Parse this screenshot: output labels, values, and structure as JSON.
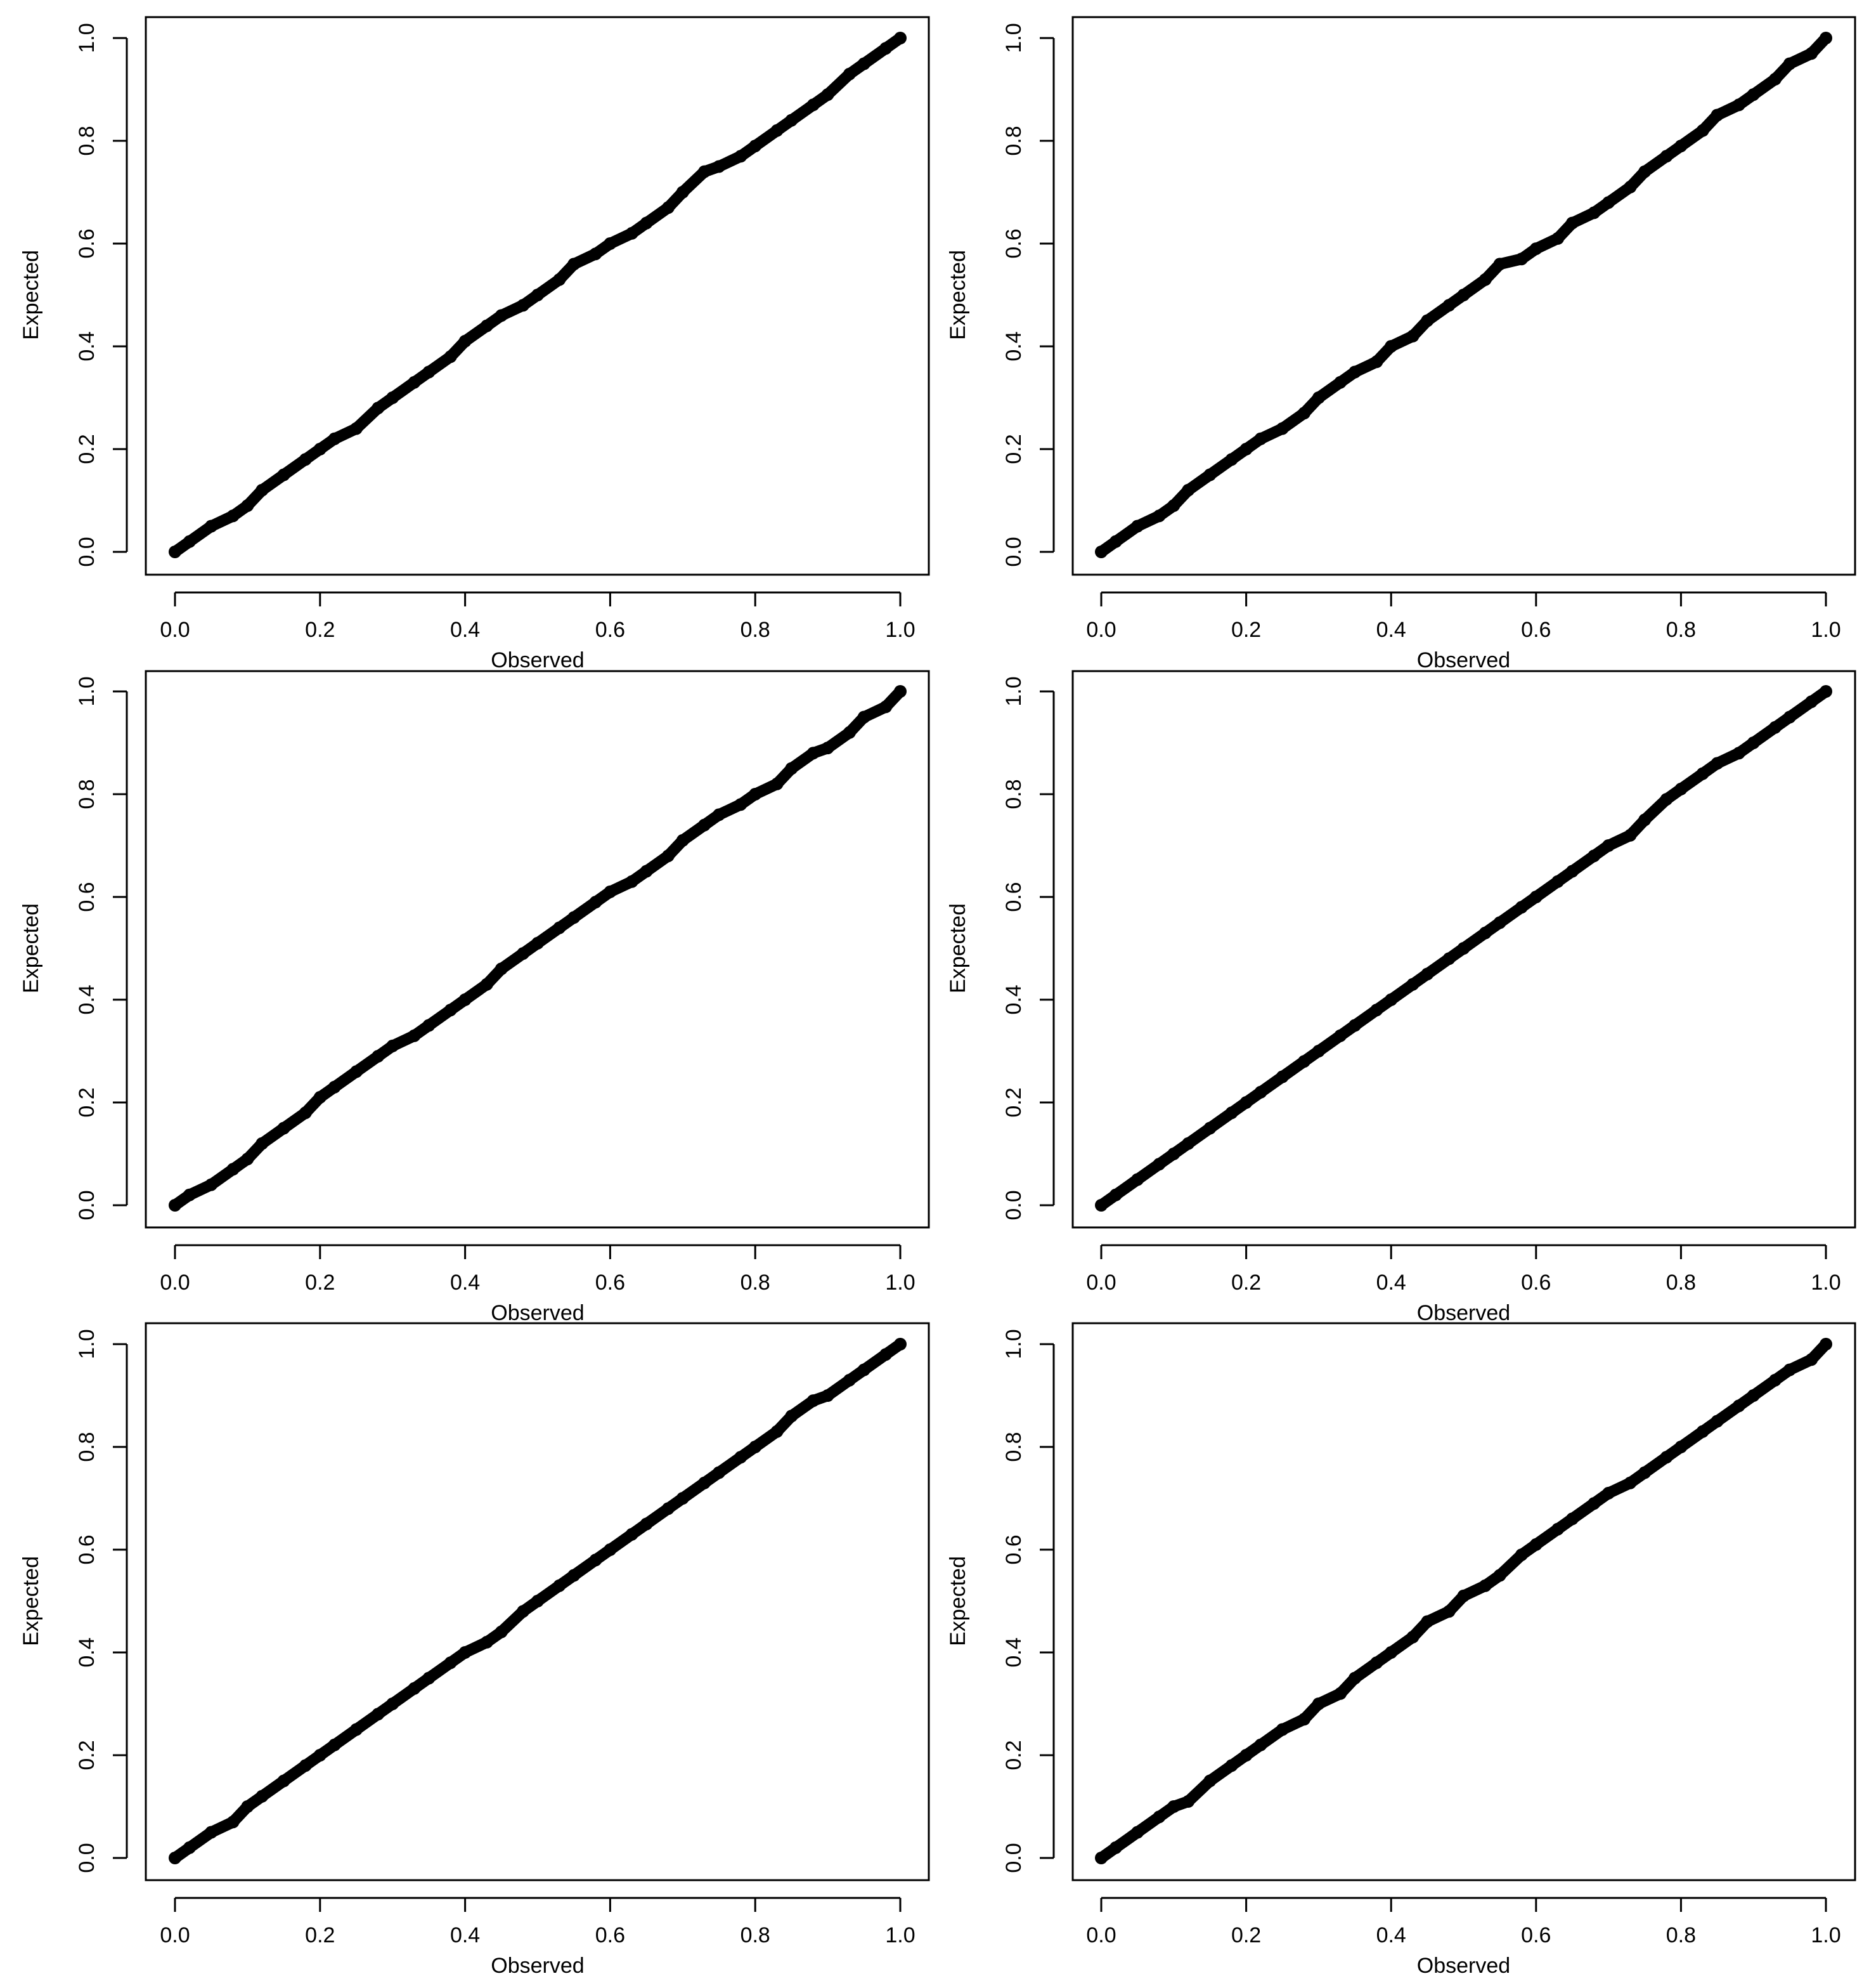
{
  "colors": {
    "background": "#ffffff",
    "ink": "#000000"
  },
  "chart_data": [
    {
      "type": "scatter",
      "xlabel": "Observed",
      "ylabel": "Expected",
      "xlim": [
        0,
        1
      ],
      "ylim": [
        0,
        1
      ],
      "xticks": [
        "0.0",
        "0.2",
        "0.4",
        "0.6",
        "0.8",
        "1.0"
      ],
      "yticks": [
        "0.0",
        "0.2",
        "0.4",
        "0.6",
        "0.8",
        "1.0"
      ],
      "grid": false,
      "series": [
        {
          "x": [
            0.0,
            0.02,
            0.05,
            0.08,
            0.1,
            0.12,
            0.15,
            0.18,
            0.2,
            0.22,
            0.25,
            0.28,
            0.3,
            0.33,
            0.35,
            0.38,
            0.4,
            0.43,
            0.45,
            0.48,
            0.5,
            0.53,
            0.55,
            0.58,
            0.6,
            0.63,
            0.65,
            0.68,
            0.7,
            0.73,
            0.75,
            0.78,
            0.8,
            0.83,
            0.85,
            0.88,
            0.9,
            0.93,
            0.95,
            0.98,
            1.0
          ],
          "y": [
            0.0,
            0.02,
            0.05,
            0.07,
            0.09,
            0.12,
            0.15,
            0.18,
            0.2,
            0.22,
            0.24,
            0.28,
            0.3,
            0.33,
            0.35,
            0.38,
            0.41,
            0.44,
            0.46,
            0.48,
            0.5,
            0.53,
            0.56,
            0.58,
            0.6,
            0.62,
            0.64,
            0.67,
            0.7,
            0.74,
            0.75,
            0.77,
            0.79,
            0.82,
            0.84,
            0.87,
            0.89,
            0.93,
            0.95,
            0.98,
            1.0
          ]
        }
      ]
    },
    {
      "type": "scatter",
      "xlabel": "Observed",
      "ylabel": "Expected",
      "xlim": [
        0,
        1
      ],
      "ylim": [
        0,
        1
      ],
      "xticks": [
        "0.0",
        "0.2",
        "0.4",
        "0.6",
        "0.8",
        "1.0"
      ],
      "yticks": [
        "0.0",
        "0.2",
        "0.4",
        "0.6",
        "0.8",
        "1.0"
      ],
      "grid": false,
      "series": [
        {
          "x": [
            0.0,
            0.02,
            0.05,
            0.08,
            0.1,
            0.12,
            0.15,
            0.18,
            0.2,
            0.22,
            0.25,
            0.28,
            0.3,
            0.33,
            0.35,
            0.38,
            0.4,
            0.43,
            0.45,
            0.48,
            0.5,
            0.53,
            0.55,
            0.58,
            0.6,
            0.63,
            0.65,
            0.68,
            0.7,
            0.73,
            0.75,
            0.78,
            0.8,
            0.83,
            0.85,
            0.88,
            0.9,
            0.93,
            0.95,
            0.98,
            1.0
          ],
          "y": [
            0.0,
            0.02,
            0.05,
            0.07,
            0.09,
            0.12,
            0.15,
            0.18,
            0.2,
            0.22,
            0.24,
            0.27,
            0.3,
            0.33,
            0.35,
            0.37,
            0.4,
            0.42,
            0.45,
            0.48,
            0.5,
            0.53,
            0.56,
            0.57,
            0.59,
            0.61,
            0.64,
            0.66,
            0.68,
            0.71,
            0.74,
            0.77,
            0.79,
            0.82,
            0.85,
            0.87,
            0.89,
            0.92,
            0.95,
            0.97,
            1.0
          ]
        }
      ]
    },
    {
      "type": "scatter",
      "xlabel": "Observed",
      "ylabel": "Expected",
      "xlim": [
        0,
        1
      ],
      "ylim": [
        0,
        1
      ],
      "xticks": [
        "0.0",
        "0.2",
        "0.4",
        "0.6",
        "0.8",
        "1.0"
      ],
      "yticks": [
        "0.0",
        "0.2",
        "0.4",
        "0.6",
        "0.8",
        "1.0"
      ],
      "grid": false,
      "series": [
        {
          "x": [
            0.0,
            0.02,
            0.05,
            0.08,
            0.1,
            0.12,
            0.15,
            0.18,
            0.2,
            0.22,
            0.25,
            0.28,
            0.3,
            0.33,
            0.35,
            0.38,
            0.4,
            0.43,
            0.45,
            0.48,
            0.5,
            0.53,
            0.55,
            0.58,
            0.6,
            0.63,
            0.65,
            0.68,
            0.7,
            0.73,
            0.75,
            0.78,
            0.8,
            0.83,
            0.85,
            0.88,
            0.9,
            0.93,
            0.95,
            0.98,
            1.0
          ],
          "y": [
            0.0,
            0.02,
            0.04,
            0.07,
            0.09,
            0.12,
            0.15,
            0.18,
            0.21,
            0.23,
            0.26,
            0.29,
            0.31,
            0.33,
            0.35,
            0.38,
            0.4,
            0.43,
            0.46,
            0.49,
            0.51,
            0.54,
            0.56,
            0.59,
            0.61,
            0.63,
            0.65,
            0.68,
            0.71,
            0.74,
            0.76,
            0.78,
            0.8,
            0.82,
            0.85,
            0.88,
            0.89,
            0.92,
            0.95,
            0.97,
            1.0
          ]
        }
      ]
    },
    {
      "type": "scatter",
      "xlabel": "Observed",
      "ylabel": "Expected",
      "xlim": [
        0,
        1
      ],
      "ylim": [
        0,
        1
      ],
      "xticks": [
        "0.0",
        "0.2",
        "0.4",
        "0.6",
        "0.8",
        "1.0"
      ],
      "yticks": [
        "0.0",
        "0.2",
        "0.4",
        "0.6",
        "0.8",
        "1.0"
      ],
      "grid": false,
      "series": [
        {
          "x": [
            0.0,
            0.02,
            0.05,
            0.08,
            0.1,
            0.12,
            0.15,
            0.18,
            0.2,
            0.22,
            0.25,
            0.28,
            0.3,
            0.33,
            0.35,
            0.38,
            0.4,
            0.43,
            0.45,
            0.48,
            0.5,
            0.53,
            0.55,
            0.58,
            0.6,
            0.63,
            0.65,
            0.68,
            0.7,
            0.73,
            0.75,
            0.78,
            0.8,
            0.83,
            0.85,
            0.88,
            0.9,
            0.93,
            0.95,
            0.98,
            1.0
          ],
          "y": [
            0.0,
            0.02,
            0.05,
            0.08,
            0.1,
            0.12,
            0.15,
            0.18,
            0.2,
            0.22,
            0.25,
            0.28,
            0.3,
            0.33,
            0.35,
            0.38,
            0.4,
            0.43,
            0.45,
            0.48,
            0.5,
            0.53,
            0.55,
            0.58,
            0.6,
            0.63,
            0.65,
            0.68,
            0.7,
            0.72,
            0.75,
            0.79,
            0.81,
            0.84,
            0.86,
            0.88,
            0.9,
            0.93,
            0.95,
            0.98,
            1.0
          ]
        }
      ]
    },
    {
      "type": "scatter",
      "xlabel": "Observed",
      "ylabel": "Expected",
      "xlim": [
        0,
        1
      ],
      "ylim": [
        0,
        1
      ],
      "xticks": [
        "0.0",
        "0.2",
        "0.4",
        "0.6",
        "0.8",
        "1.0"
      ],
      "yticks": [
        "0.0",
        "0.2",
        "0.4",
        "0.6",
        "0.8",
        "1.0"
      ],
      "grid": false,
      "series": [
        {
          "x": [
            0.0,
            0.02,
            0.05,
            0.08,
            0.1,
            0.12,
            0.15,
            0.18,
            0.2,
            0.22,
            0.25,
            0.28,
            0.3,
            0.33,
            0.35,
            0.38,
            0.4,
            0.43,
            0.45,
            0.48,
            0.5,
            0.53,
            0.55,
            0.58,
            0.6,
            0.63,
            0.65,
            0.68,
            0.7,
            0.73,
            0.75,
            0.78,
            0.8,
            0.83,
            0.85,
            0.88,
            0.9,
            0.93,
            0.95,
            0.98,
            1.0
          ],
          "y": [
            0.0,
            0.02,
            0.05,
            0.07,
            0.1,
            0.12,
            0.15,
            0.18,
            0.2,
            0.22,
            0.25,
            0.28,
            0.3,
            0.33,
            0.35,
            0.38,
            0.4,
            0.42,
            0.44,
            0.48,
            0.5,
            0.53,
            0.55,
            0.58,
            0.6,
            0.63,
            0.65,
            0.68,
            0.7,
            0.73,
            0.75,
            0.78,
            0.8,
            0.83,
            0.86,
            0.89,
            0.9,
            0.93,
            0.95,
            0.98,
            1.0
          ]
        }
      ]
    },
    {
      "type": "scatter",
      "xlabel": "Observed",
      "ylabel": "Expected",
      "xlim": [
        0,
        1
      ],
      "ylim": [
        0,
        1
      ],
      "xticks": [
        "0.0",
        "0.2",
        "0.4",
        "0.6",
        "0.8",
        "1.0"
      ],
      "yticks": [
        "0.0",
        "0.2",
        "0.4",
        "0.6",
        "0.8",
        "1.0"
      ],
      "grid": false,
      "series": [
        {
          "x": [
            0.0,
            0.02,
            0.05,
            0.08,
            0.1,
            0.12,
            0.15,
            0.18,
            0.2,
            0.22,
            0.25,
            0.28,
            0.3,
            0.33,
            0.35,
            0.38,
            0.4,
            0.43,
            0.45,
            0.48,
            0.5,
            0.53,
            0.55,
            0.58,
            0.6,
            0.63,
            0.65,
            0.68,
            0.7,
            0.73,
            0.75,
            0.78,
            0.8,
            0.83,
            0.85,
            0.88,
            0.9,
            0.93,
            0.95,
            0.98,
            1.0
          ],
          "y": [
            0.0,
            0.02,
            0.05,
            0.08,
            0.1,
            0.11,
            0.15,
            0.18,
            0.2,
            0.22,
            0.25,
            0.27,
            0.3,
            0.32,
            0.35,
            0.38,
            0.4,
            0.43,
            0.46,
            0.48,
            0.51,
            0.53,
            0.55,
            0.59,
            0.61,
            0.64,
            0.66,
            0.69,
            0.71,
            0.73,
            0.75,
            0.78,
            0.8,
            0.83,
            0.85,
            0.88,
            0.9,
            0.93,
            0.95,
            0.97,
            1.0
          ]
        }
      ]
    }
  ]
}
